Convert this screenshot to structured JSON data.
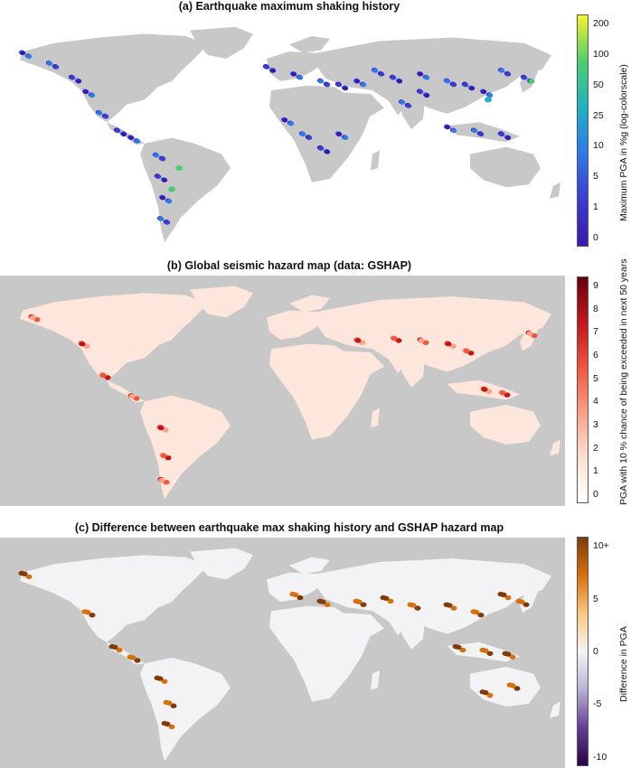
{
  "panels": [
    {
      "title": "(a) Earthquake maximum shaking history",
      "colorbar_label": "Maximum PGA in %g (log-colorscale)",
      "ticks": [
        "200",
        "100",
        "50",
        "25",
        "10",
        "5",
        "1",
        "0"
      ],
      "scale": "log",
      "colormap": [
        "#f8f22a",
        "#4ccf6e",
        "#1fb1c5",
        "#2e79e8",
        "#3b3cd2",
        "#3b18b0"
      ]
    },
    {
      "title": "(b) Global seismic hazard map (data: GSHAP)",
      "colorbar_label": "PGA with 10 % chance of being exceeded in next 50 years",
      "ticks": [
        "9",
        "8",
        "7",
        "6",
        "5",
        "4",
        "3",
        "2",
        "1",
        "0"
      ],
      "scale": "linear",
      "colormap": [
        "#67000d",
        "#c3161b",
        "#f0553d",
        "#fc9f86",
        "#fee0d3",
        "#ffffff"
      ]
    },
    {
      "title": "(c) Difference between earthquake max shaking history and GSHAP hazard map",
      "colorbar_label": "Difference in PGA",
      "ticks": [
        "10+",
        "5",
        "0",
        "-5",
        "-10"
      ],
      "scale": "linear",
      "colormap": [
        "#7f3b08",
        "#d86f0b",
        "#fdc880",
        "#f4f4f4",
        "#b9b3d8",
        "#653e96",
        "#2d004b"
      ]
    }
  ],
  "colors": {
    "ocean": "#ffffff",
    "ocean_b": "#c8c8c8",
    "land": "#c8c8c8",
    "land_b": "#fde6db",
    "land_c": "#f3f3f5"
  }
}
